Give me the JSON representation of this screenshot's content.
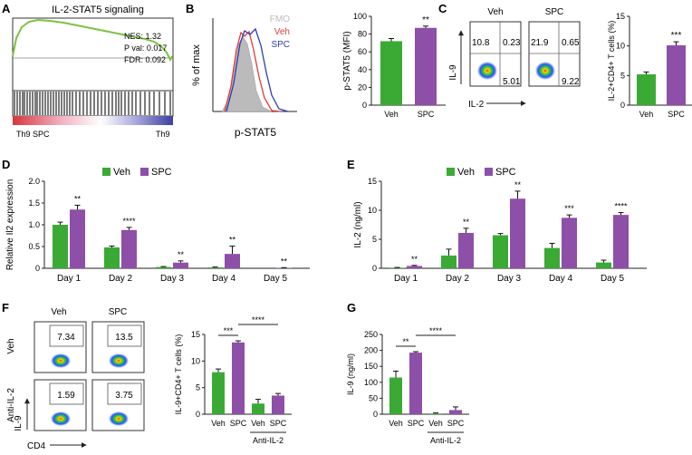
{
  "panel_letters": {
    "A": "A",
    "B": "B",
    "C": "C",
    "D": "D",
    "E": "E",
    "F": "F",
    "G": "G"
  },
  "colors": {
    "veh": "#3aaa35",
    "spc": "#8e4fa8",
    "gsea": "#7dc242",
    "err": "#111111"
  },
  "panel_a": {
    "title": "IL-2-STAT5 signaling",
    "nes": "NES: 1.32",
    "pval": "P val: 0.017",
    "fdr": "FDR: 0.092",
    "left_label": "Th9 SPC",
    "right_label": "Th9"
  },
  "panel_b": {
    "legend": [
      "FMO",
      "Veh",
      "SPC"
    ],
    "ylabel": "% of max",
    "xlabel": "p-STAT5"
  },
  "panel_c_flow": {
    "veh_title": "Veh",
    "spc_title": "SPC",
    "yaxis": "IL-9",
    "xaxis": "IL-2",
    "veh_q": [
      "10.8",
      "0.23",
      "5.01"
    ],
    "spc_q": [
      "21.9",
      "0.65",
      "9.22"
    ]
  },
  "panel_f_flow": {
    "col_veh": "Veh",
    "col_spc": "SPC",
    "row_veh": "Veh",
    "row_anti": "Anti-IL-2",
    "yaxis": "IL-9",
    "xaxis": "CD4",
    "vals": [
      "7.34",
      "13.5",
      "1.59",
      "3.75"
    ]
  },
  "chart_data": [
    {
      "id": "B",
      "type": "bar",
      "ylabel": "p-STAT5 (MFI)",
      "categories": [
        "Veh",
        "SPC"
      ],
      "values": [
        72,
        87
      ],
      "errors": [
        3,
        2
      ],
      "ylim": [
        0,
        100
      ],
      "yticks": [
        0,
        20,
        40,
        60,
        80,
        100
      ],
      "sig": [
        "**"
      ]
    },
    {
      "id": "C",
      "type": "bar",
      "ylabel": "IL-2+CD4+ T cells (%)",
      "categories": [
        "Veh",
        "SPC"
      ],
      "values": [
        5.2,
        10.1
      ],
      "errors": [
        0.4,
        0.6
      ],
      "ylim": [
        0,
        15
      ],
      "yticks": [
        0,
        5,
        10,
        15
      ],
      "sig": [
        "***"
      ]
    },
    {
      "id": "D",
      "type": "bar",
      "ylabel": "Relative Il2 expression",
      "legend": [
        "Veh",
        "SPC"
      ],
      "categories": [
        "Day 1",
        "Day 2",
        "Day 3",
        "Day 4",
        "Day 5"
      ],
      "series": [
        {
          "name": "Veh",
          "values": [
            1.0,
            0.48,
            0.03,
            0.02,
            0.0
          ],
          "errors": [
            0.06,
            0.03,
            0.01,
            0.01,
            0.0
          ]
        },
        {
          "name": "SPC",
          "values": [
            1.35,
            0.88,
            0.13,
            0.33,
            0.01
          ],
          "errors": [
            0.1,
            0.06,
            0.04,
            0.18,
            0.005
          ]
        }
      ],
      "ylim": [
        0,
        2.0
      ],
      "yticks": [
        "0",
        "0.5",
        "1.0",
        "1.5",
        "2.0"
      ],
      "sig": [
        "**",
        "****",
        "**",
        "**",
        "**"
      ]
    },
    {
      "id": "E",
      "type": "bar",
      "ylabel": "IL-2 (ng/ml)",
      "legend": [
        "Veh",
        "SPC"
      ],
      "categories": [
        "Day 1",
        "Day 2",
        "Day 3",
        "Day 4",
        "Day 5"
      ],
      "series": [
        {
          "name": "Veh",
          "values": [
            0.1,
            2.2,
            5.7,
            3.5,
            1.0
          ],
          "errors": [
            0.05,
            1.1,
            0.3,
            0.8,
            0.4
          ]
        },
        {
          "name": "SPC",
          "values": [
            0.4,
            6.1,
            12.0,
            8.7,
            9.2
          ],
          "errors": [
            0.1,
            0.8,
            1.3,
            0.5,
            0.4
          ]
        }
      ],
      "ylim": [
        0,
        15
      ],
      "yticks": [
        0,
        5,
        10,
        15
      ],
      "sig": [
        "**",
        "**",
        "**",
        "***",
        "****"
      ]
    },
    {
      "id": "F",
      "type": "bar",
      "ylabel": "IL-9+CD4+ T cells (%)",
      "categories": [
        "Veh",
        "SPC",
        "Veh",
        "SPC"
      ],
      "group_label": "Anti-IL-2",
      "values": [
        7.9,
        13.5,
        2.0,
        3.5
      ],
      "errors": [
        0.6,
        0.3,
        0.8,
        0.4
      ],
      "ylim": [
        0,
        15
      ],
      "yticks": [
        0,
        5,
        10,
        15
      ],
      "sig": [
        "***",
        "****"
      ]
    },
    {
      "id": "G",
      "type": "bar",
      "ylabel": "IL-9 (ng/ml)",
      "categories": [
        "Veh",
        "SPC",
        "Veh",
        "SPC"
      ],
      "group_label": "Anti-IL-2",
      "values": [
        115,
        193,
        2,
        13
      ],
      "errors": [
        20,
        3,
        2,
        10
      ],
      "ylim": [
        0,
        250
      ],
      "yticks": [
        0,
        50,
        100,
        150,
        200,
        250
      ],
      "sig": [
        "**",
        "****"
      ]
    }
  ]
}
